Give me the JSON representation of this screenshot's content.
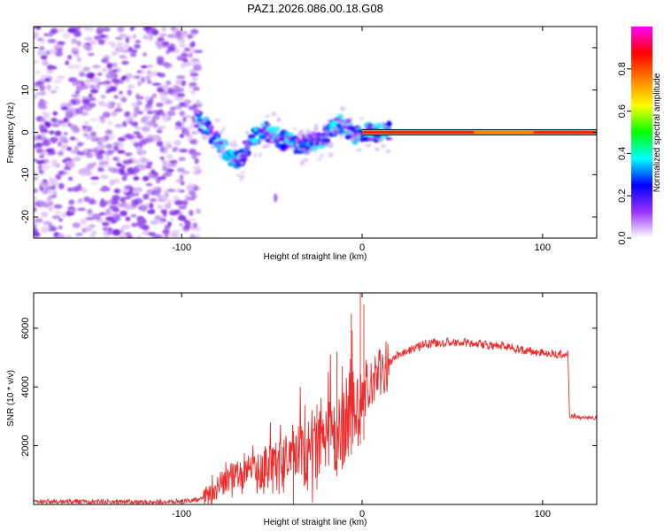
{
  "title": "PAZ1.2026.086.00.18.G08",
  "chart_data": [
    {
      "type": "heatmap",
      "name": "spectrogram",
      "xlabel": "Height of straight line (km)",
      "ylabel": "Frequency (Hz)",
      "xlim": [
        -182,
        130
      ],
      "ylim": [
        -25,
        25
      ],
      "xticks": [
        -100,
        0,
        100
      ],
      "xtick_labels": [
        "-100",
        "0",
        "100"
      ],
      "yticks": [
        -20,
        -10,
        0,
        10,
        20
      ],
      "ytick_labels": [
        "-20",
        "-10",
        "0",
        "10",
        "20"
      ],
      "noise_region_x": [
        -182,
        -90
      ],
      "signal_trace": {
        "x": [
          -92,
          -88,
          -84,
          -80,
          -76,
          -72,
          -68,
          -64,
          -60,
          -56,
          -52,
          -48,
          -44,
          -40,
          -36,
          -32,
          -28,
          -24,
          -20,
          -16,
          -12,
          -8,
          -4,
          0,
          4,
          8,
          12,
          15
        ],
        "freq_hz": [
          3,
          2,
          0,
          -2,
          -4,
          -6,
          -7,
          -4,
          -1,
          0,
          0,
          -1,
          -2,
          -2,
          -3,
          -3,
          -2,
          -2,
          -1,
          1,
          2,
          1,
          -1,
          0,
          0,
          0,
          0,
          0
        ]
      },
      "carrier_line": {
        "x": [
          0,
          130
        ],
        "freq_hz": 0
      },
      "colorbar": {
        "label": "Normalized spectral amplitude",
        "range": [
          0,
          1
        ],
        "ticks": [
          0.0,
          0.2,
          0.4,
          0.6,
          0.8
        ],
        "tick_labels": [
          "0.0",
          "0.2",
          "0.4",
          "0.6",
          "0.8"
        ],
        "colors": [
          "#ffffff",
          "#9b30ff",
          "#0000ff",
          "#00ffff",
          "#00ff00",
          "#ffff00",
          "#ff8000",
          "#ff0000",
          "#ff00ff"
        ]
      }
    },
    {
      "type": "line",
      "name": "snr",
      "xlabel": "Height of straight line (km)",
      "ylabel": "SNR (10 * v/v)",
      "xlim": [
        -182,
        130
      ],
      "ylim": [
        0,
        7200
      ],
      "xticks": [
        -100,
        0,
        100
      ],
      "xtick_labels": [
        "-100",
        "0",
        "100"
      ],
      "yticks": [
        2000,
        4000,
        6000
      ],
      "ytick_labels": [
        "2000",
        "4000",
        "6000"
      ],
      "color": "#ee2c2c",
      "series": [
        {
          "name": "SNR",
          "x": [
            -182,
            -150,
            -120,
            -95,
            -88,
            -84,
            -80,
            -75,
            -70,
            -65,
            -60,
            -55,
            -50,
            -45,
            -40,
            -35,
            -30,
            -25,
            -20,
            -15,
            -12,
            -10,
            -8,
            -6,
            -4,
            -2,
            0,
            2,
            5,
            8,
            12,
            16,
            20,
            25,
            30,
            35,
            40,
            45,
            50,
            55,
            60,
            65,
            70,
            75,
            80,
            85,
            90,
            95,
            100,
            105,
            110,
            114,
            115,
            118,
            122,
            126,
            130
          ],
          "y": [
            100,
            100,
            80,
            120,
            200,
            300,
            600,
            800,
            900,
            1000,
            1000,
            1100,
            1200,
            1300,
            1400,
            1600,
            1800,
            2000,
            2200,
            2400,
            2600,
            2800,
            3000,
            3200,
            3400,
            3500,
            3600,
            3800,
            4100,
            4300,
            4600,
            4900,
            5100,
            5250,
            5350,
            5450,
            5500,
            5500,
            5520,
            5500,
            5480,
            5450,
            5420,
            5400,
            5380,
            5300,
            5250,
            5200,
            5150,
            5120,
            5100,
            5100,
            3000,
            3000,
            2950,
            2950,
            2950
          ]
        }
      ],
      "spikes": [
        {
          "x": -38,
          "y": 2500
        },
        {
          "x": -25,
          "y": 3400
        },
        {
          "x": -14,
          "y": 5200
        },
        {
          "x": -11,
          "y": 4700
        },
        {
          "x": -6,
          "y": 6500
        },
        {
          "x": -1,
          "y": 7200
        },
        {
          "x": 1,
          "y": 6800
        }
      ]
    }
  ]
}
